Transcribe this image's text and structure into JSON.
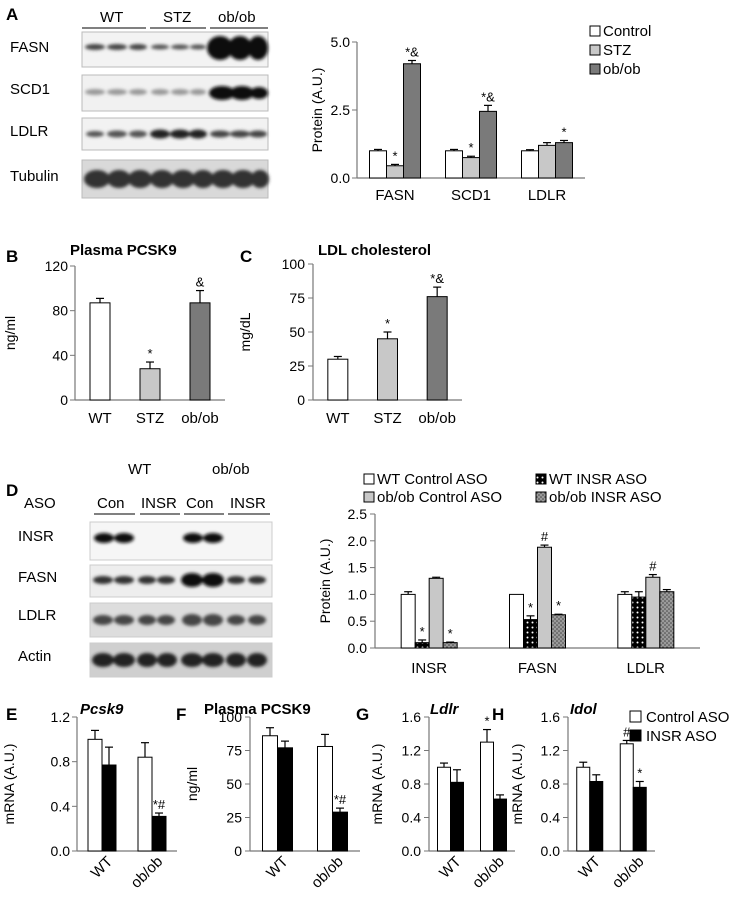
{
  "legend_colors": {
    "white": "#ffffff",
    "light_gray": "#c8c8c8",
    "dark_gray": "#7a7a7a",
    "black": "#000000"
  },
  "panels": {
    "A": {
      "label": "A",
      "blot": {
        "groups": [
          "WT",
          "STZ",
          "ob/ob"
        ],
        "rows": [
          "FASN",
          "SCD1",
          "LDLR",
          "Tubulin"
        ]
      }
    },
    "D": {
      "label": "D",
      "blot": {
        "top_groups": [
          "WT",
          "ob/ob"
        ],
        "aso_label": "ASO",
        "lane_groups": [
          "Con",
          "INSR",
          "Con",
          "INSR"
        ],
        "rows": [
          "INSR",
          "FASN",
          "LDLR",
          "Actin"
        ]
      }
    }
  },
  "chart_data": [
    {
      "id": "A",
      "type": "bar",
      "categories": [
        "FASN",
        "SCD1",
        "LDLR"
      ],
      "ylabel": "Protein (A.U.)",
      "ylim": [
        0,
        5
      ],
      "yticks": [
        "0.0",
        "2.5",
        "5.0"
      ],
      "legend": [
        "Control",
        "STZ",
        "ob/ob"
      ],
      "series": [
        {
          "name": "Control",
          "color": "#ffffff",
          "values": [
            1.0,
            1.0,
            1.0
          ],
          "errors": [
            0.05,
            0.05,
            0.04
          ],
          "marks": [
            "",
            "",
            ""
          ]
        },
        {
          "name": "STZ",
          "color": "#c8c8c8",
          "values": [
            0.45,
            0.75,
            1.2
          ],
          "errors": [
            0.05,
            0.05,
            0.1
          ],
          "marks": [
            "*",
            "*",
            ""
          ]
        },
        {
          "name": "ob/ob",
          "color": "#7a7a7a",
          "values": [
            4.2,
            2.45,
            1.3
          ],
          "errors": [
            0.12,
            0.22,
            0.08
          ],
          "marks": [
            "*&",
            "*&",
            "*"
          ]
        }
      ]
    },
    {
      "id": "B",
      "label": "B",
      "type": "bar",
      "title": "Plasma PCSK9",
      "categories": [
        "WT",
        "STZ",
        "ob/ob"
      ],
      "ylabel": "ng/ml",
      "ylim": [
        0,
        120
      ],
      "yticks": [
        "0",
        "40",
        "80",
        "120"
      ],
      "colors": [
        "#ffffff",
        "#c8c8c8",
        "#7a7a7a"
      ],
      "values": [
        87,
        28,
        87
      ],
      "errors": [
        4,
        6,
        11
      ],
      "marks": [
        "",
        "*",
        "&"
      ]
    },
    {
      "id": "C",
      "label": "C",
      "type": "bar",
      "title": "LDL cholesterol",
      "categories": [
        "WT",
        "STZ",
        "ob/ob"
      ],
      "ylabel": "mg/dL",
      "ylim": [
        0,
        100
      ],
      "yticks": [
        "0",
        "25",
        "50",
        "75",
        "100"
      ],
      "colors": [
        "#ffffff",
        "#c8c8c8",
        "#7a7a7a"
      ],
      "values": [
        30,
        45,
        76
      ],
      "errors": [
        2,
        5,
        7
      ],
      "marks": [
        "",
        "*",
        "*&"
      ]
    },
    {
      "id": "D",
      "type": "bar",
      "categories": [
        "INSR",
        "FASN",
        "LDLR"
      ],
      "ylabel": "Protein (A.U.)",
      "ylim": [
        0,
        2.5
      ],
      "yticks": [
        "0.0",
        "0.5",
        "1.0",
        "1.5",
        "2.0",
        "2.5"
      ],
      "legend": [
        "WT Control ASO",
        "WT INSR ASO",
        "ob/ob Control ASO",
        "ob/ob INSR ASO"
      ],
      "series": [
        {
          "name": "WT Control ASO",
          "pattern": "white",
          "values": [
            1.0,
            1.0,
            1.0
          ],
          "errors": [
            0.05,
            0.0,
            0.05
          ],
          "marks": [
            "",
            "",
            ""
          ]
        },
        {
          "name": "WT INSR ASO",
          "pattern": "black-dots",
          "values": [
            0.1,
            0.53,
            0.95
          ],
          "errors": [
            0.05,
            0.07,
            0.1
          ],
          "marks": [
            "*",
            "*",
            ""
          ]
        },
        {
          "name": "ob/ob Control ASO",
          "pattern": "gray",
          "values": [
            1.3,
            1.88,
            1.32
          ],
          "errors": [
            0.02,
            0.04,
            0.05
          ],
          "marks": [
            "",
            "#",
            "#"
          ]
        },
        {
          "name": "ob/ob INSR ASO",
          "pattern": "dark-dots",
          "values": [
            0.1,
            0.62,
            1.05
          ],
          "errors": [
            0.01,
            0.01,
            0.04
          ],
          "marks": [
            "*",
            "*",
            ""
          ]
        }
      ]
    },
    {
      "id": "E",
      "label": "E",
      "type": "bar",
      "title": "Pcsk9",
      "title_italic": true,
      "categories": [
        "WT",
        "ob/ob"
      ],
      "ylabel": "mRNA (A.U.)",
      "ylim": [
        0,
        1.2
      ],
      "yticks": [
        "0.0",
        "0.4",
        "0.8",
        "1.2"
      ],
      "series": [
        {
          "name": "Control ASO",
          "color": "#ffffff",
          "values": [
            1.0,
            0.84
          ],
          "errors": [
            0.08,
            0.13
          ],
          "marks": [
            "",
            ""
          ]
        },
        {
          "name": "INSR ASO",
          "color": "#000000",
          "values": [
            0.77,
            0.31
          ],
          "errors": [
            0.16,
            0.03
          ],
          "marks": [
            "",
            "*#"
          ]
        }
      ]
    },
    {
      "id": "F",
      "label": "F",
      "type": "bar",
      "title": "Plasma PCSK9",
      "categories": [
        "WT",
        "ob/ob"
      ],
      "ylabel": "ng/ml",
      "ylim": [
        0,
        100
      ],
      "yticks": [
        "0",
        "25",
        "50",
        "75",
        "100"
      ],
      "series": [
        {
          "name": "Control ASO",
          "color": "#ffffff",
          "values": [
            86,
            78
          ],
          "errors": [
            6,
            9
          ],
          "marks": [
            "",
            ""
          ]
        },
        {
          "name": "INSR ASO",
          "color": "#000000",
          "values": [
            77,
            29
          ],
          "errors": [
            5,
            3
          ],
          "marks": [
            "",
            "*#"
          ]
        }
      ]
    },
    {
      "id": "G",
      "label": "G",
      "type": "bar",
      "title": "Ldlr",
      "title_italic": true,
      "categories": [
        "WT",
        "ob/ob"
      ],
      "ylabel": "mRNA (A.U.)",
      "ylim": [
        0,
        1.6
      ],
      "yticks": [
        "0.0",
        "0.4",
        "0.8",
        "1.2",
        "1.6"
      ],
      "series": [
        {
          "name": "Control ASO",
          "color": "#ffffff",
          "values": [
            1.0,
            1.3
          ],
          "errors": [
            0.05,
            0.15
          ],
          "marks": [
            "",
            "*"
          ]
        },
        {
          "name": "INSR ASO",
          "color": "#000000",
          "values": [
            0.82,
            0.62
          ],
          "errors": [
            0.15,
            0.05
          ],
          "marks": [
            "",
            ""
          ]
        }
      ]
    },
    {
      "id": "H",
      "label": "H",
      "type": "bar",
      "title": "Idol",
      "title_italic": true,
      "categories": [
        "WT",
        "ob/ob"
      ],
      "ylabel": "mRNA (A.U.)",
      "ylim": [
        0,
        1.6
      ],
      "yticks": [
        "0.0",
        "0.4",
        "0.8",
        "1.2",
        "1.6"
      ],
      "legend": [
        "Control ASO",
        "INSR ASO"
      ],
      "series": [
        {
          "name": "Control ASO",
          "color": "#ffffff",
          "values": [
            1.0,
            1.28
          ],
          "errors": [
            0.06,
            0.04
          ],
          "marks": [
            "",
            "#"
          ]
        },
        {
          "name": "INSR ASO",
          "color": "#000000",
          "values": [
            0.83,
            0.76
          ],
          "errors": [
            0.08,
            0.07
          ],
          "marks": [
            "",
            "*"
          ]
        }
      ]
    }
  ]
}
